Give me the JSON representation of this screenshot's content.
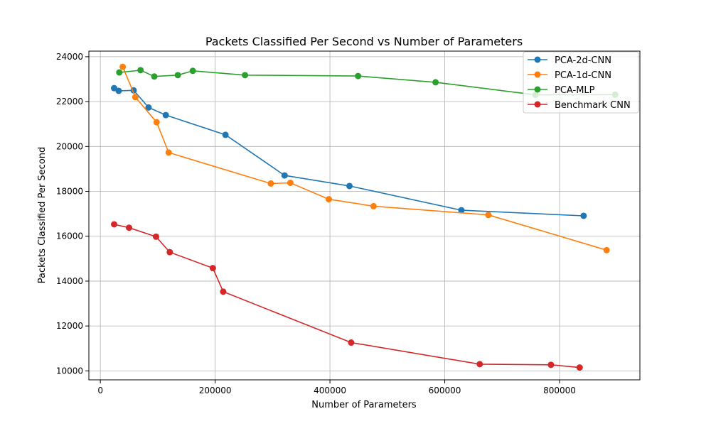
{
  "chart_data": {
    "type": "line",
    "title": "Packets Classified Per Second vs Number of Parameters",
    "xlabel": "Number of Parameters",
    "ylabel": "Packets Classified Per Second",
    "xlim": [
      -20000,
      940000
    ],
    "ylim": [
      9600,
      24250
    ],
    "xticks": [
      0,
      200000,
      400000,
      600000,
      800000
    ],
    "xtick_labels": [
      "0",
      "200000",
      "400000",
      "600000",
      "800000"
    ],
    "yticks": [
      10000,
      12000,
      14000,
      16000,
      18000,
      20000,
      22000,
      24000
    ],
    "ytick_labels": [
      "10000",
      "12000",
      "14000",
      "16000",
      "18000",
      "20000",
      "22000",
      "24000"
    ],
    "grid": true,
    "legend_position": "top-right",
    "series": [
      {
        "name": "PCA-2d-CNN",
        "color": "#1f77b4",
        "x": [
          24000,
          32000,
          58000,
          84000,
          114000,
          218000,
          321000,
          434000,
          629000,
          842000
        ],
        "y": [
          22600,
          22480,
          22500,
          21740,
          21400,
          20520,
          18710,
          18240,
          17160,
          16910
        ]
      },
      {
        "name": "PCA-1d-CNN",
        "color": "#ff7f0e",
        "x": [
          39000,
          61000,
          98000,
          119000,
          297000,
          331000,
          398000,
          476000,
          676000,
          882000
        ],
        "y": [
          23550,
          22200,
          21080,
          19730,
          18350,
          18380,
          17650,
          17340,
          16950,
          15380
        ]
      },
      {
        "name": "PCA-MLP",
        "color": "#2ca02c",
        "x": [
          33000,
          70000,
          94000,
          135000,
          161000,
          252000,
          449000,
          584000,
          758000,
          897000
        ],
        "y": [
          23300,
          23400,
          23120,
          23180,
          23370,
          23180,
          23140,
          22860,
          22300,
          22310
        ]
      },
      {
        "name": "Benchmark CNN",
        "color": "#d62728",
        "x": [
          24000,
          50000,
          97000,
          121000,
          196000,
          214000,
          437000,
          661000,
          785000,
          835000
        ],
        "y": [
          16530,
          16380,
          15980,
          15290,
          14580,
          13530,
          11260,
          10300,
          10270,
          10150
        ]
      }
    ]
  }
}
